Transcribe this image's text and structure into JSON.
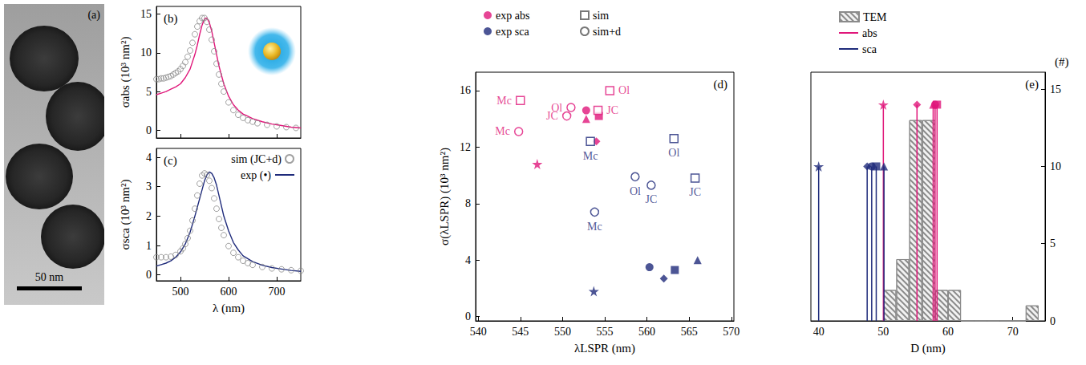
{
  "chart_data": [
    {
      "type": "image",
      "title": "(a)",
      "scale_bar": {
        "label": "50 nm",
        "length": 50
      }
    },
    {
      "type": "line",
      "title": "(b)",
      "y_label": "σabs (10³ nm²)",
      "xlim": [
        450,
        750
      ],
      "xticks": [
        500,
        600,
        700
      ],
      "ylim": [
        -1,
        16
      ],
      "yticks": [
        0,
        5,
        10,
        15
      ],
      "tick_labels": "y",
      "series": [
        {
          "type": "line",
          "color": "#e0177a",
          "x": [
            450,
            460,
            470,
            480,
            490,
            500,
            510,
            520,
            530,
            535,
            540,
            545,
            550,
            555,
            560,
            565,
            570,
            575,
            580,
            590,
            600,
            610,
            620,
            630,
            640,
            650,
            670,
            690,
            710,
            730,
            750
          ],
          "values": [
            4.6,
            4.8,
            5.0,
            5.3,
            5.6,
            6.0,
            6.8,
            7.9,
            9.8,
            11.0,
            12.4,
            13.6,
            14.4,
            14.5,
            13.9,
            12.8,
            11.3,
            9.8,
            8.3,
            6.0,
            4.4,
            3.3,
            2.6,
            2.1,
            1.8,
            1.5,
            1.1,
            0.8,
            0.6,
            0.4,
            0.3
          ]
        },
        {
          "type": "scatter",
          "marker": "open-circle",
          "color": "#8a8a8a",
          "x": [
            450,
            455,
            460,
            465,
            470,
            475,
            480,
            485,
            490,
            495,
            500,
            505,
            510,
            515,
            520,
            525,
            530,
            535,
            540,
            545,
            550,
            555,
            560,
            565,
            570,
            575,
            580,
            585,
            590,
            600,
            610,
            620,
            630,
            640,
            650,
            660,
            680,
            700,
            720,
            740
          ],
          "values": [
            6.6,
            6.6,
            6.7,
            6.7,
            6.8,
            6.9,
            7.0,
            7.2,
            7.4,
            7.6,
            7.9,
            8.3,
            8.8,
            9.5,
            10.3,
            11.3,
            12.4,
            13.4,
            14.1,
            14.5,
            14.5,
            14.0,
            13.0,
            11.7,
            10.2,
            8.6,
            7.2,
            6.0,
            5.0,
            3.6,
            2.6,
            2.0,
            1.6,
            1.3,
            1.1,
            0.9,
            0.7,
            0.5,
            0.4,
            0.3
          ]
        }
      ]
    },
    {
      "type": "line",
      "title": "(c)",
      "x_label": "λ (nm)",
      "y_label": "σsca (10³ nm²)",
      "xlim": [
        450,
        750
      ],
      "xticks": [
        500,
        600,
        700
      ],
      "ylim": [
        -0.2,
        4.3
      ],
      "yticks": [
        0,
        1,
        2,
        3,
        4
      ],
      "legend": "top-right",
      "series": [
        {
          "name": "sim (JC+d)",
          "type": "scatter",
          "marker": "open-circle",
          "color": "#8a8a8a",
          "x": [
            450,
            460,
            470,
            480,
            490,
            500,
            505,
            510,
            515,
            520,
            525,
            530,
            535,
            540,
            545,
            550,
            555,
            560,
            565,
            570,
            575,
            580,
            585,
            590,
            600,
            610,
            620,
            630,
            640,
            650,
            670,
            690,
            710,
            730,
            750
          ],
          "values": [
            0.6,
            0.6,
            0.6,
            0.62,
            0.68,
            0.8,
            0.9,
            1.05,
            1.25,
            1.5,
            1.85,
            2.25,
            2.7,
            3.1,
            3.38,
            3.45,
            3.4,
            3.2,
            2.95,
            2.6,
            2.25,
            1.9,
            1.6,
            1.35,
            0.98,
            0.75,
            0.6,
            0.48,
            0.4,
            0.34,
            0.27,
            0.22,
            0.19,
            0.16,
            0.14
          ]
        },
        {
          "name": "exp (•)",
          "type": "line",
          "color": "#1f2b7b",
          "x": [
            450,
            460,
            470,
            480,
            490,
            500,
            510,
            520,
            530,
            540,
            545,
            550,
            555,
            560,
            565,
            570,
            575,
            580,
            590,
            600,
            610,
            620,
            630,
            650,
            670,
            690,
            710,
            730,
            750
          ],
          "values": [
            0.3,
            0.35,
            0.4,
            0.48,
            0.6,
            0.78,
            1.05,
            1.45,
            2.0,
            2.6,
            2.9,
            3.2,
            3.4,
            3.5,
            3.45,
            3.3,
            3.05,
            2.7,
            2.0,
            1.5,
            1.1,
            0.85,
            0.65,
            0.45,
            0.33,
            0.25,
            0.2,
            0.15,
            0.12
          ]
        }
      ]
    },
    {
      "type": "scatter",
      "title": "(d)",
      "x_label": "λLSPR (nm)",
      "y_label": "σ(λLSPR) (10³ nm²)",
      "xlim": [
        539.7,
        570.3
      ],
      "xticks": [
        540,
        545,
        550,
        555,
        560,
        565,
        570
      ],
      "ylim": [
        -0.3,
        17.3
      ],
      "yticks": [
        0,
        4,
        8,
        12,
        16
      ],
      "legend": "top-left",
      "series": [
        {
          "name": "exp abs",
          "color": "#e0177a",
          "marker": "circle",
          "markers": [
            "circle",
            "square",
            "triangle",
            "diamond",
            "star"
          ],
          "x": [
            552.8,
            554.3,
            552.8,
            554.0,
            547.0
          ],
          "values": [
            14.6,
            14.2,
            14.0,
            12.4,
            10.8
          ]
        },
        {
          "name": "exp sca",
          "color": "#1f2b7b",
          "marker": "circle",
          "markers": [
            "circle",
            "square",
            "triangle",
            "diamond",
            "star"
          ],
          "x": [
            560.3,
            563.3,
            566.0,
            562.0,
            553.7
          ],
          "values": [
            3.5,
            3.3,
            4.0,
            2.7,
            1.8
          ]
        },
        {
          "name": "sim",
          "color": "#555555",
          "marker": "open-square",
          "colors": [
            "#e0177a",
            "#e0177a",
            "#e0177a",
            "#1f2b7b",
            "#1f2b7b",
            "#1f2b7b"
          ],
          "x": [
            545.0,
            555.6,
            554.2,
            553.3,
            563.2,
            565.7
          ],
          "values": [
            15.3,
            16.0,
            14.6,
            12.4,
            12.6,
            9.8
          ],
          "labels": [
            "Mc",
            "Ol",
            "JC",
            "Mc",
            "Ol",
            "JC"
          ]
        },
        {
          "name": "sim+d",
          "color": "#555555",
          "marker": "open-circle",
          "colors": [
            "#e0177a",
            "#e0177a",
            "#e0177a",
            "#1f2b7b",
            "#1f2b7b",
            "#1f2b7b"
          ],
          "x": [
            544.8,
            551.0,
            550.5,
            558.6,
            560.5,
            553.8
          ],
          "values": [
            13.1,
            14.8,
            14.2,
            9.9,
            9.3,
            7.4
          ],
          "labels": [
            "Mc",
            "Ol",
            "JC",
            "Ol",
            "JC",
            "Mc"
          ]
        }
      ]
    },
    {
      "type": "histogram",
      "title": "(e)",
      "x_label": "D (nm)",
      "y_label": "(#)",
      "xlim": [
        38.8,
        75
      ],
      "xticks": [
        40,
        50,
        60,
        70
      ],
      "ylim": [
        0,
        16.1
      ],
      "yticks": [
        0,
        5,
        10,
        15
      ],
      "legend": "top-left",
      "series": [
        {
          "name": "TEM",
          "type": "histogram",
          "color": "#8a8a8a",
          "bins": [
            50,
            52,
            54,
            56,
            58,
            60,
            62,
            64,
            66,
            68,
            70,
            72,
            74
          ],
          "counts": [
            2,
            4,
            13,
            13,
            2,
            2,
            0,
            0,
            0,
            0,
            0,
            1
          ]
        },
        {
          "name": "abs",
          "type": "stem",
          "color": "#e0177a",
          "markers": [
            "circle",
            "square",
            "triangle",
            "diamond",
            "star"
          ],
          "x": [
            58.0,
            58.3,
            57.7,
            55.2,
            50.0
          ],
          "values": [
            14,
            14,
            14,
            14,
            14
          ]
        },
        {
          "name": "sca",
          "type": "stem",
          "color": "#1f2b7b",
          "markers": [
            "circle",
            "square",
            "triangle",
            "diamond",
            "star"
          ],
          "x": [
            48.2,
            48.9,
            50.1,
            47.5,
            40.0
          ],
          "values": [
            10,
            10,
            10,
            10,
            10
          ]
        }
      ]
    }
  ]
}
